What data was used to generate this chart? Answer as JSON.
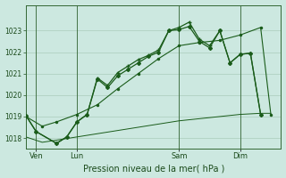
{
  "background_color": "#cce8e0",
  "plot_bg_color": "#cce8e0",
  "grid_color": "#aaccbb",
  "line_color": "#1a5c1a",
  "xlabel": "Pression niveau de la mer( hPa )",
  "ylim": [
    1017.5,
    1024.2
  ],
  "yticks": [
    1018,
    1019,
    1020,
    1021,
    1022,
    1023
  ],
  "xtick_labels": [
    "Ven",
    "Lun",
    "Sam",
    "Dim"
  ],
  "xtick_positions": [
    0.5,
    2.5,
    7.5,
    10.5
  ],
  "xlim": [
    0,
    12.5
  ],
  "series_flat": {
    "x": [
      0,
      0.8,
      1.5,
      2.5,
      3.5,
      4.5,
      5.5,
      6.5,
      7.5,
      8.5,
      9.5,
      10.5,
      11.5,
      12.0
    ],
    "y": [
      1018.05,
      1017.8,
      1017.9,
      1018.05,
      1018.2,
      1018.35,
      1018.5,
      1018.65,
      1018.8,
      1018.9,
      1019.0,
      1019.1,
      1019.15,
      1019.15
    ]
  },
  "series_smooth": {
    "x": [
      0,
      0.8,
      1.5,
      2.5,
      3.5,
      4.5,
      5.5,
      6.5,
      7.5,
      8.5,
      9.5,
      10.5,
      11.5,
      12.0
    ],
    "y": [
      1019.0,
      1018.55,
      1018.75,
      1019.1,
      1019.55,
      1020.3,
      1021.0,
      1021.7,
      1022.3,
      1022.45,
      1022.55,
      1022.8,
      1023.15,
      1019.1
    ]
  },
  "series_main1": {
    "x": [
      0,
      0.5,
      1.5,
      2.0,
      2.5,
      3.0,
      3.5,
      4.0,
      4.5,
      5.0,
      5.5,
      6.0,
      6.5,
      7.0,
      7.5,
      8.0,
      8.5,
      9.0,
      9.5,
      10.0,
      10.5,
      11.0,
      11.5
    ],
    "y": [
      1019.05,
      1018.3,
      1017.75,
      1018.05,
      1018.75,
      1019.1,
      1020.8,
      1020.45,
      1021.05,
      1021.35,
      1021.65,
      1021.85,
      1022.1,
      1023.0,
      1023.15,
      1023.4,
      1022.6,
      1022.3,
      1023.0,
      1021.5,
      1021.9,
      1021.95,
      1019.1
    ]
  },
  "series_main2": {
    "x": [
      0,
      0.5,
      1.5,
      2.0,
      2.5,
      3.0,
      3.5,
      4.0,
      4.5,
      5.0,
      5.5,
      6.0,
      6.5,
      7.0,
      7.5,
      8.0,
      8.5,
      9.0,
      9.5,
      10.0,
      10.5,
      11.0,
      11.5
    ],
    "y": [
      1019.05,
      1018.3,
      1017.75,
      1018.05,
      1018.75,
      1019.1,
      1020.75,
      1020.35,
      1020.9,
      1021.2,
      1021.5,
      1021.8,
      1022.0,
      1023.0,
      1023.05,
      1023.2,
      1022.5,
      1022.2,
      1023.0,
      1021.5,
      1021.9,
      1021.95,
      1019.1
    ]
  },
  "vline_positions": [
    0.5,
    2.5,
    7.5,
    10.5
  ]
}
